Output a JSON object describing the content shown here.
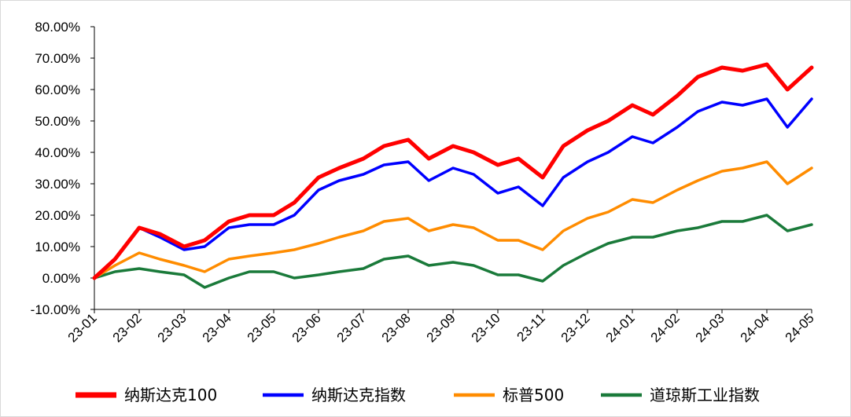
{
  "chart_data": {
    "type": "line",
    "title": "",
    "xlabel": "",
    "ylabel": "",
    "ylim": [
      -0.1,
      0.8
    ],
    "yticks": [
      "-10.00%",
      "0.00%",
      "10.00%",
      "20.00%",
      "30.00%",
      "40.00%",
      "50.00%",
      "60.00%",
      "70.00%",
      "80.00%"
    ],
    "ytick_values": [
      -0.1,
      0.0,
      0.1,
      0.2,
      0.3,
      0.4,
      0.5,
      0.6,
      0.7,
      0.8
    ],
    "xticks": [
      "23-01",
      "23-02",
      "23-03",
      "23-04",
      "23-05",
      "23-06",
      "23-07",
      "23-08",
      "23-09",
      "23-10",
      "23-11",
      "23-12",
      "24-01",
      "24-02",
      "24-03",
      "24-04",
      "24-05"
    ],
    "grid": false,
    "legend_position": "bottom",
    "x": [
      "23-01-01",
      "23-01-15",
      "23-02-01",
      "23-02-15",
      "23-03-01",
      "23-03-15",
      "23-04-01",
      "23-04-15",
      "23-05-01",
      "23-05-15",
      "23-06-01",
      "23-06-15",
      "23-07-01",
      "23-07-15",
      "23-08-01",
      "23-08-15",
      "23-09-01",
      "23-09-15",
      "23-10-01",
      "23-10-15",
      "23-11-01",
      "23-11-15",
      "23-12-01",
      "23-12-15",
      "24-01-01",
      "24-01-15",
      "24-02-01",
      "24-02-15",
      "24-03-01",
      "24-03-15",
      "24-04-01",
      "24-04-15",
      "24-05-01"
    ],
    "series": [
      {
        "name": "纳斯达克100",
        "color": "#ff0000",
        "values": [
          0.0,
          0.06,
          0.16,
          0.14,
          0.1,
          0.12,
          0.18,
          0.2,
          0.2,
          0.24,
          0.32,
          0.35,
          0.38,
          0.42,
          0.44,
          0.38,
          0.42,
          0.4,
          0.36,
          0.38,
          0.32,
          0.42,
          0.47,
          0.5,
          0.55,
          0.52,
          0.58,
          0.64,
          0.67,
          0.66,
          0.68,
          0.6,
          0.67
        ]
      },
      {
        "name": "纳斯达克指数",
        "color": "#0000ff",
        "values": [
          0.0,
          0.06,
          0.16,
          0.13,
          0.09,
          0.1,
          0.16,
          0.17,
          0.17,
          0.2,
          0.28,
          0.31,
          0.33,
          0.36,
          0.37,
          0.31,
          0.35,
          0.33,
          0.27,
          0.29,
          0.23,
          0.32,
          0.37,
          0.4,
          0.45,
          0.43,
          0.48,
          0.53,
          0.56,
          0.55,
          0.57,
          0.48,
          0.57
        ]
      },
      {
        "name": "标普500",
        "color": "#ff8c00",
        "values": [
          0.0,
          0.04,
          0.08,
          0.06,
          0.04,
          0.02,
          0.06,
          0.07,
          0.08,
          0.09,
          0.11,
          0.13,
          0.15,
          0.18,
          0.19,
          0.15,
          0.17,
          0.16,
          0.12,
          0.12,
          0.09,
          0.15,
          0.19,
          0.21,
          0.25,
          0.24,
          0.28,
          0.31,
          0.34,
          0.35,
          0.37,
          0.3,
          0.35
        ]
      },
      {
        "name": "道琼斯工业指数",
        "color": "#1a7a3a",
        "values": [
          0.0,
          0.02,
          0.03,
          0.02,
          0.01,
          -0.03,
          0.0,
          0.02,
          0.02,
          0.0,
          0.01,
          0.02,
          0.03,
          0.06,
          0.07,
          0.04,
          0.05,
          0.04,
          0.01,
          0.01,
          -0.01,
          0.04,
          0.08,
          0.11,
          0.13,
          0.13,
          0.15,
          0.16,
          0.18,
          0.18,
          0.2,
          0.15,
          0.17
        ]
      }
    ]
  }
}
